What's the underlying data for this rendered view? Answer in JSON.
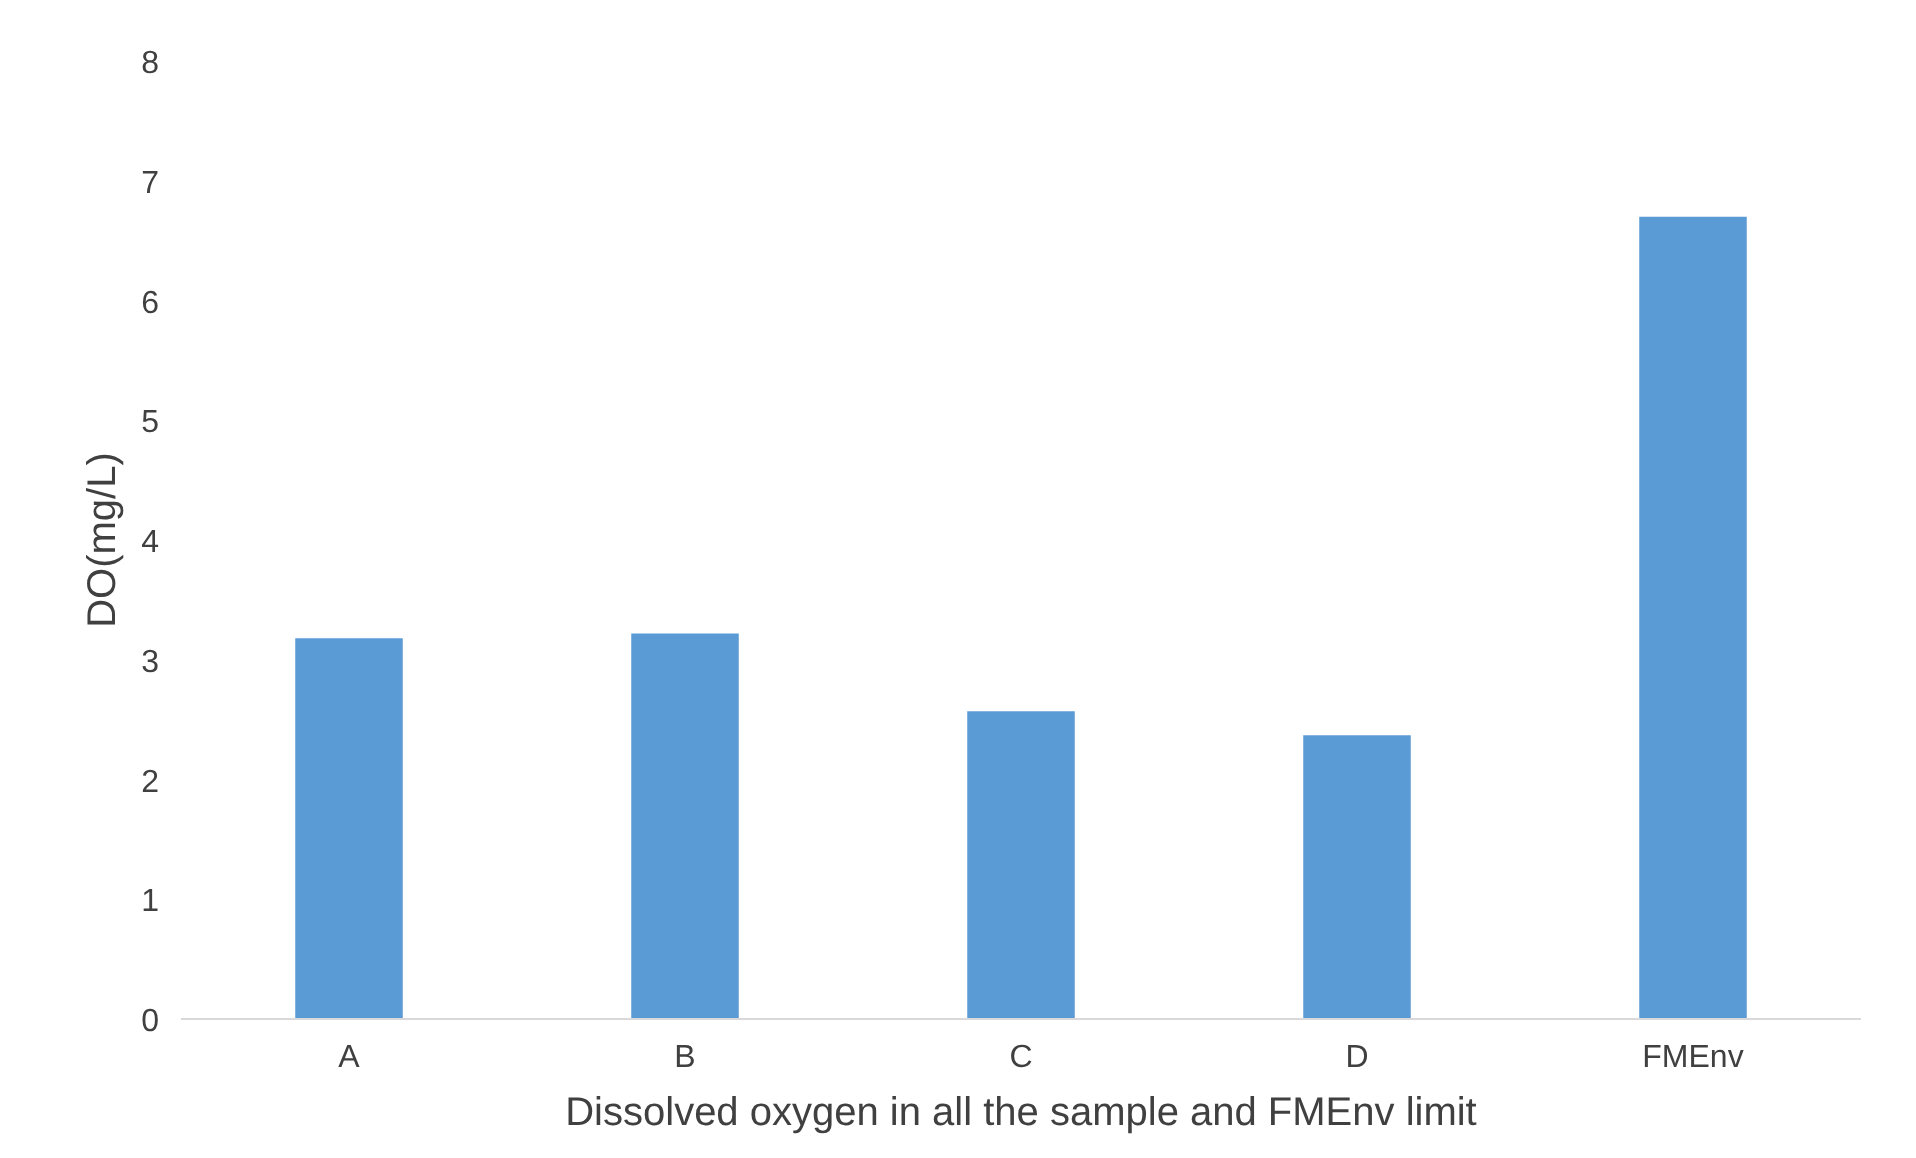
{
  "chart_data": {
    "type": "bar",
    "xlabel": "Dissolved oxygen in all the sample and FMEnv limit",
    "ylabel": "DO(mg/L)",
    "categories": [
      "A",
      "B",
      "C",
      "D",
      "FMEnv"
    ],
    "values": [
      3.18,
      3.22,
      2.57,
      2.37,
      6.7
    ],
    "color": "#5b9bd5",
    "ylim": [
      0,
      8
    ],
    "yticks": [
      0,
      1,
      2,
      3,
      4,
      5,
      6,
      7,
      8
    ],
    "grid": false
  }
}
